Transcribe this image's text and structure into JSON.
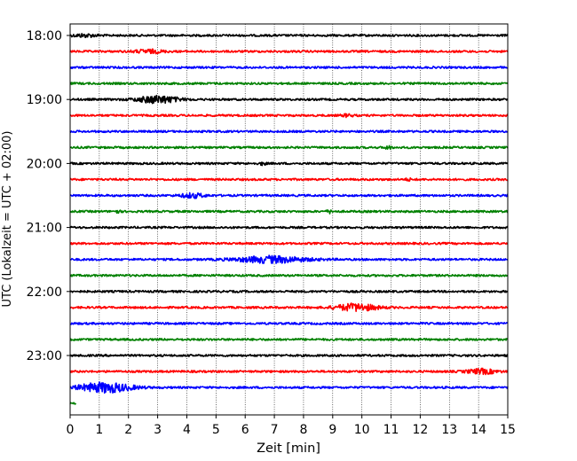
{
  "chart_data": {
    "type": "line",
    "title": "",
    "xlabel": "Zeit  [min]",
    "ylabel": "UTC (Lokalzeit = UTC + 02:00)",
    "xlim": [
      0,
      15
    ],
    "x_ticks": [
      "0",
      "1",
      "2",
      "3",
      "4",
      "5",
      "6",
      "7",
      "8",
      "9",
      "10",
      "11",
      "12",
      "13",
      "14",
      "15"
    ],
    "y_ticks": [
      "18:00",
      "19:00",
      "20:00",
      "21:00",
      "22:00",
      "23:00"
    ],
    "grid_x": true,
    "grid_y": false,
    "trace_interval_min": 15,
    "colors": [
      "#000000",
      "#ff0000",
      "#0000ff",
      "#008000"
    ],
    "traces": [
      {
        "start": "18:00",
        "color": "#000000",
        "events": [
          {
            "t": 0.5,
            "amp": 1.6,
            "w": 0.4
          }
        ]
      },
      {
        "start": "18:15",
        "color": "#ff0000",
        "events": [
          {
            "t": 2.7,
            "amp": 1.8,
            "w": 0.5
          }
        ]
      },
      {
        "start": "18:30",
        "color": "#0000ff",
        "events": []
      },
      {
        "start": "18:45",
        "color": "#008000",
        "events": []
      },
      {
        "start": "19:00",
        "color": "#000000",
        "events": [
          {
            "t": 3.0,
            "amp": 4.0,
            "w": 0.7
          }
        ]
      },
      {
        "start": "19:15",
        "color": "#ff0000",
        "events": [
          {
            "t": 9.5,
            "amp": 1.2,
            "w": 0.2
          }
        ]
      },
      {
        "start": "19:30",
        "color": "#0000ff",
        "events": []
      },
      {
        "start": "19:45",
        "color": "#008000",
        "events": [
          {
            "t": 10.9,
            "amp": 2.0,
            "w": 0.1
          }
        ]
      },
      {
        "start": "20:00",
        "color": "#000000",
        "events": [
          {
            "t": 6.6,
            "amp": 1.5,
            "w": 0.1
          }
        ]
      },
      {
        "start": "20:15",
        "color": "#ff0000",
        "events": [
          {
            "t": 11.6,
            "amp": 1.2,
            "w": 0.1
          }
        ]
      },
      {
        "start": "20:30",
        "color": "#0000ff",
        "events": [
          {
            "t": 4.2,
            "amp": 2.4,
            "w": 0.4
          }
        ]
      },
      {
        "start": "20:45",
        "color": "#008000",
        "events": [
          {
            "t": 1.6,
            "amp": 1.5,
            "w": 0.1
          },
          {
            "t": 8.9,
            "amp": 1.5,
            "w": 0.1
          }
        ]
      },
      {
        "start": "21:00",
        "color": "#000000",
        "events": []
      },
      {
        "start": "21:15",
        "color": "#ff0000",
        "events": []
      },
      {
        "start": "21:30",
        "color": "#0000ff",
        "events": [
          {
            "t": 6.9,
            "amp": 3.6,
            "w": 1.2
          }
        ]
      },
      {
        "start": "21:45",
        "color": "#008000",
        "events": []
      },
      {
        "start": "22:00",
        "color": "#000000",
        "events": []
      },
      {
        "start": "22:15",
        "color": "#ff0000",
        "events": [
          {
            "t": 9.8,
            "amp": 4.0,
            "w": 0.7
          }
        ]
      },
      {
        "start": "22:30",
        "color": "#0000ff",
        "events": []
      },
      {
        "start": "22:45",
        "color": "#008000",
        "events": []
      },
      {
        "start": "23:00",
        "color": "#000000",
        "events": []
      },
      {
        "start": "23:15",
        "color": "#ff0000",
        "events": [
          {
            "t": 14.1,
            "amp": 2.6,
            "w": 0.5
          }
        ]
      },
      {
        "start": "23:30",
        "color": "#0000ff",
        "events": [
          {
            "t": 1.2,
            "amp": 5.5,
            "w": 0.9
          }
        ]
      },
      {
        "start": "23:45",
        "color": "#008000",
        "end_min": 0.2,
        "events": []
      }
    ]
  }
}
